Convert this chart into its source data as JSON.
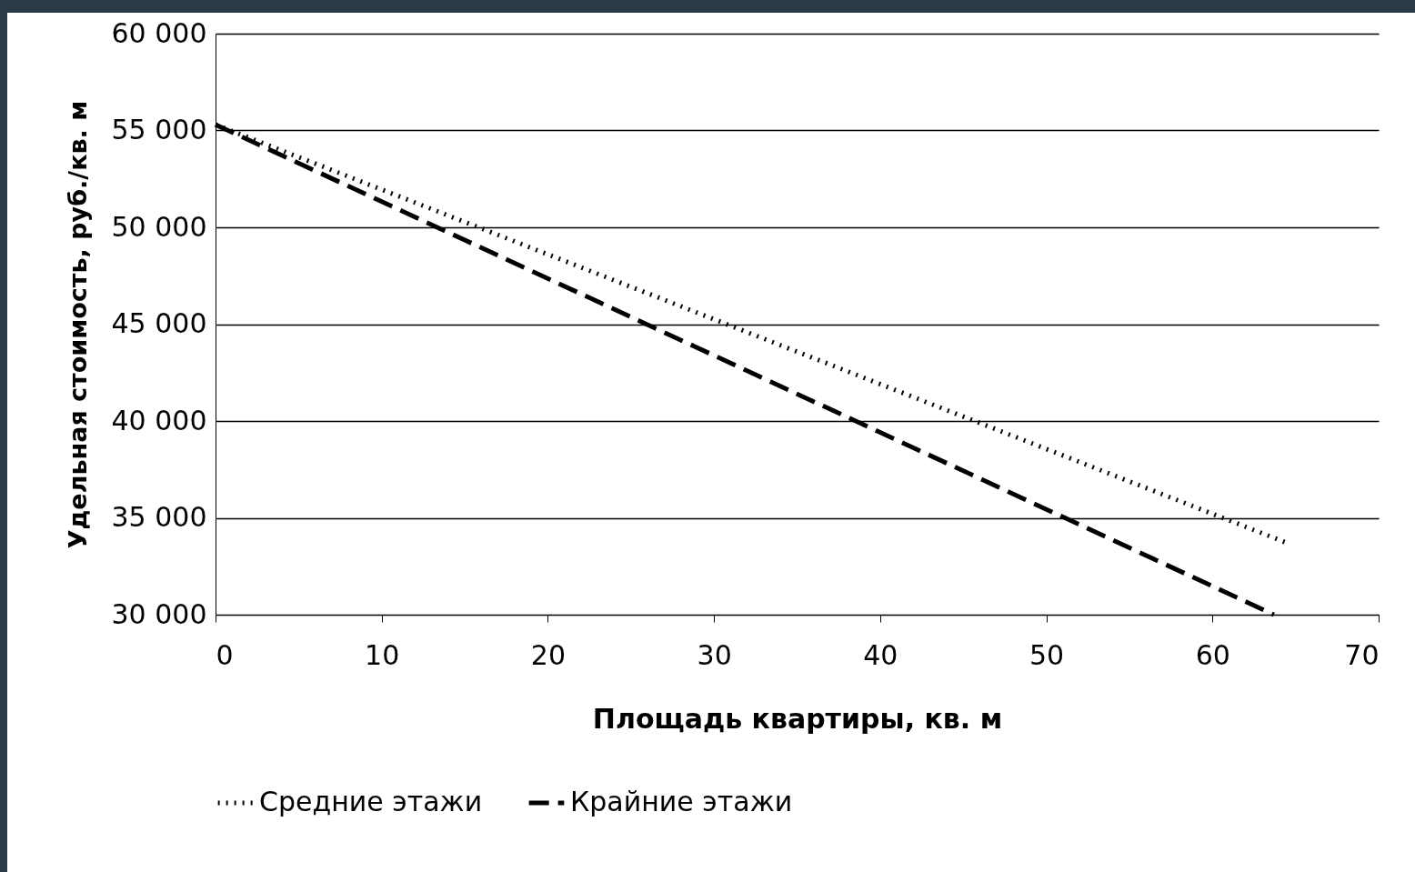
{
  "chart_data": {
    "type": "line",
    "xlabel": "Площадь квартиры, кв. м",
    "ylabel": "Удельная стоимость, руб./кв. м",
    "xlim": [
      0,
      70
    ],
    "xticks": [
      0,
      10,
      20,
      30,
      40,
      50,
      60,
      70
    ],
    "ylim": [
      30000,
      60000
    ],
    "yticks": [
      {
        "value": 30000,
        "label": "30 000"
      },
      {
        "value": 35000,
        "label": "35 000"
      },
      {
        "value": 40000,
        "label": "40 000"
      },
      {
        "value": 45000,
        "label": "45 000"
      },
      {
        "value": 50000,
        "label": "50 000"
      },
      {
        "value": 55000,
        "label": "55 000"
      },
      {
        "value": 60000,
        "label": "60 000"
      }
    ],
    "grid": "y",
    "legend": "bottom",
    "series": [
      {
        "name": "Средние этажи",
        "color": "#000000",
        "line_style": "dotted",
        "x": [
          0,
          64.5
        ],
        "values": [
          55300,
          33700
        ]
      },
      {
        "name": "Крайние этажи",
        "color": "#000000",
        "line_style": "dashed",
        "x": [
          0,
          63.7
        ],
        "values": [
          55300,
          30000
        ]
      }
    ]
  }
}
